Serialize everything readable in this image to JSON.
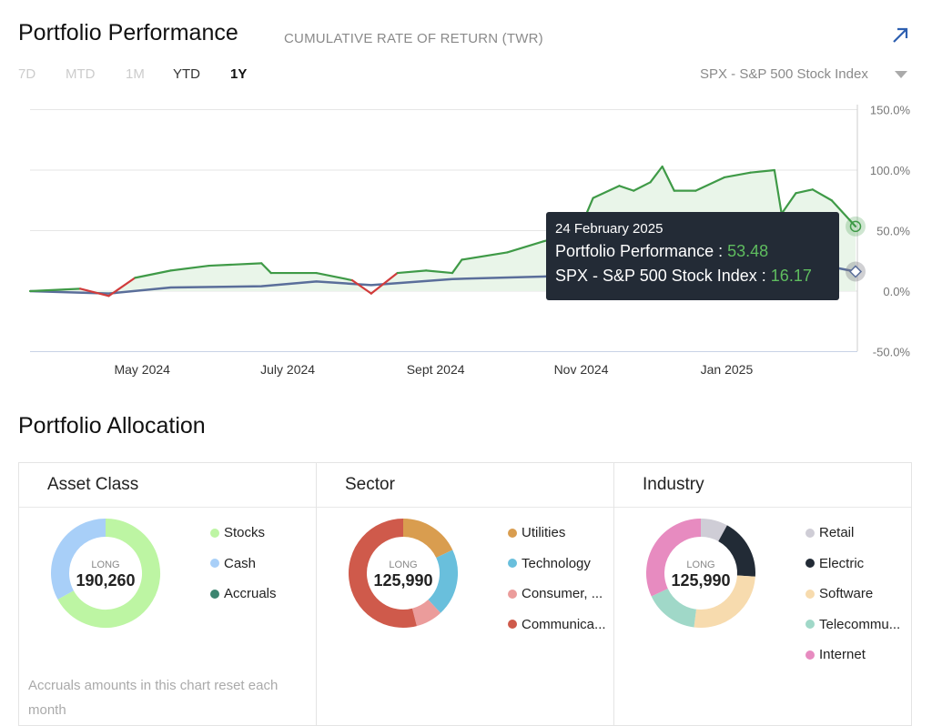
{
  "header": {
    "title": "Portfolio Performance",
    "subtitle": "CUMULATIVE RATE OF RETURN (TWR)",
    "expand_icon": "arrow-up-right-icon"
  },
  "ranges": [
    {
      "label": "7D",
      "state": "disabled"
    },
    {
      "label": "MTD",
      "state": "disabled"
    },
    {
      "label": "1M",
      "state": "disabled"
    },
    {
      "label": "YTD",
      "state": "enabled"
    },
    {
      "label": "1Y",
      "state": "selected"
    }
  ],
  "benchmark": {
    "selected": "SPX - S&P 500 Stock Index"
  },
  "colors": {
    "portfolio": "#3f9a47",
    "negative": "#d13b3b",
    "spx": "#5a6e9a",
    "fill": "#e9f5e9"
  },
  "chart_data": {
    "type": "line",
    "title": "Portfolio Performance",
    "ylabel": "Cumulative rate of return (%)",
    "ylim": [
      -50,
      150
    ],
    "yticks": [
      "150.0%",
      "100.0%",
      "50.0%",
      "0.0%",
      "-50.0%"
    ],
    "ytick_values": [
      150,
      100,
      50,
      0,
      -50
    ],
    "x_range": [
      "2024-03-15",
      "2025-02-24"
    ],
    "xticks": [
      {
        "label": "May 2024",
        "date": "2024-05-01"
      },
      {
        "label": "July 2024",
        "date": "2024-07-01"
      },
      {
        "label": "Sept 2024",
        "date": "2024-09-01"
      },
      {
        "label": "Nov 2024",
        "date": "2024-11-01"
      },
      {
        "label": "Jan 2025",
        "date": "2025-01-01"
      }
    ],
    "grid": true,
    "series": [
      {
        "name": "Portfolio Performance",
        "points": [
          [
            "2024-03-15",
            0
          ],
          [
            "2024-04-05",
            2
          ],
          [
            "2024-04-17",
            -4
          ],
          [
            "2024-04-28",
            11
          ],
          [
            "2024-05-13",
            17
          ],
          [
            "2024-05-29",
            21
          ],
          [
            "2024-06-20",
            23
          ],
          [
            "2024-06-24",
            15
          ],
          [
            "2024-07-13",
            15
          ],
          [
            "2024-07-28",
            9
          ],
          [
            "2024-08-05",
            -2
          ],
          [
            "2024-08-16",
            15
          ],
          [
            "2024-08-28",
            17
          ],
          [
            "2024-09-08",
            15
          ],
          [
            "2024-09-12",
            26
          ],
          [
            "2024-10-01",
            32
          ],
          [
            "2024-10-16",
            41
          ],
          [
            "2024-10-31",
            49
          ],
          [
            "2024-11-06",
            77
          ],
          [
            "2024-11-17",
            87
          ],
          [
            "2024-11-23",
            83
          ],
          [
            "2024-11-30",
            90
          ],
          [
            "2024-12-05",
            103
          ],
          [
            "2024-12-10",
            83
          ],
          [
            "2024-12-19",
            83
          ],
          [
            "2024-12-31",
            94
          ],
          [
            "2025-01-11",
            98
          ],
          [
            "2025-01-21",
            100
          ],
          [
            "2025-01-24",
            64
          ],
          [
            "2025-01-30",
            81
          ],
          [
            "2025-02-06",
            84
          ],
          [
            "2025-02-14",
            75
          ],
          [
            "2025-02-24",
            53.48
          ]
        ]
      },
      {
        "name": "SPX - S&P 500 Stock Index",
        "points": [
          [
            "2024-03-15",
            0
          ],
          [
            "2024-04-17",
            -2
          ],
          [
            "2024-05-13",
            3
          ],
          [
            "2024-06-20",
            4
          ],
          [
            "2024-07-13",
            8
          ],
          [
            "2024-08-05",
            5
          ],
          [
            "2024-09-08",
            10
          ],
          [
            "2024-10-16",
            12
          ],
          [
            "2024-11-17",
            15
          ],
          [
            "2024-12-10",
            17
          ],
          [
            "2025-01-11",
            16
          ],
          [
            "2025-02-14",
            20
          ],
          [
            "2025-02-24",
            16.17
          ]
        ]
      }
    ]
  },
  "tooltip": {
    "date": "24 February 2025",
    "portfolio_label": "Portfolio Performance : ",
    "portfolio_value": "53.48",
    "spx_label": "SPX - S&P 500 Stock Index : ",
    "spx_value": "16.17"
  },
  "allocation": {
    "title": "Portfolio Allocation",
    "panels": [
      {
        "title": "Asset Class",
        "center_label": "LONG",
        "center_value": "190,260",
        "slices": [
          {
            "label": "Stocks",
            "value": 0.67,
            "color": "#bdf5a3"
          },
          {
            "label": "Cash",
            "value": 0.33,
            "color": "#a8cff8"
          },
          {
            "label": "Accruals",
            "value": 0,
            "color": "#3c8570"
          }
        ]
      },
      {
        "title": "Sector",
        "center_label": "LONG",
        "center_value": "125,990",
        "slices": [
          {
            "label": "Utilities",
            "value": 0.18,
            "color": "#d99d4f"
          },
          {
            "label": "Technology",
            "value": 0.2,
            "color": "#69bfdc"
          },
          {
            "label": "Consumer, ...",
            "value": 0.08,
            "color": "#eb9c9b"
          },
          {
            "label": "Communica...",
            "value": 0.54,
            "color": "#cf5a4b"
          }
        ]
      },
      {
        "title": "Industry",
        "center_label": "LONG",
        "center_value": "125,990",
        "slices": [
          {
            "label": "Retail",
            "value": 0.08,
            "color": "#cfcdd6"
          },
          {
            "label": "Electric",
            "value": 0.18,
            "color": "#222b36"
          },
          {
            "label": "Software",
            "value": 0.26,
            "color": "#f7dbae"
          },
          {
            "label": "Telecommu...",
            "value": 0.16,
            "color": "#a0d8c8"
          },
          {
            "label": "Internet",
            "value": 0.32,
            "color": "#e78bc0"
          }
        ]
      }
    ],
    "note": "Accruals amounts in this chart reset each month"
  }
}
